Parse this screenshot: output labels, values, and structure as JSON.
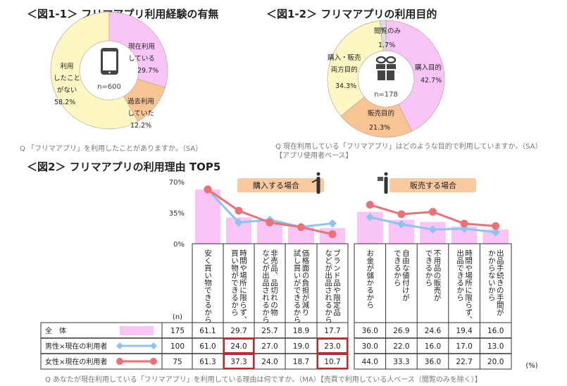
{
  "colors": {
    "pink": "#f9c5f7",
    "orange": "#f8c494",
    "yellow": "#fdf8c3",
    "gray": "#dcdcdc",
    "blue": "#8ec4f2",
    "red": "#ec7074",
    "badge": "#f9ca9e",
    "highlight": "#c0282c"
  },
  "chart_data": [
    {
      "type": "pie",
      "title": "＜図1-1＞ フリマアプリ利用経験の有無",
      "center_label": "n=600",
      "icon": "smartphone-icon",
      "slices": [
        {
          "label": "現在利用\nしている",
          "value": 29.7,
          "color": "pink"
        },
        {
          "label": "過去利用\nしていた",
          "value": 12.2,
          "color": "orange"
        },
        {
          "label": "利用\nしたこと\nがない",
          "value": 58.2,
          "color": "yellow"
        }
      ],
      "caption": "Q 「フリマアプリ」を利用したことがありますか。（SA）"
    },
    {
      "type": "pie",
      "title": "＜図1-2＞ フリマアプリの利用目的",
      "center_label": "n=178",
      "icon": "gift-icon",
      "slices": [
        {
          "label": "購入目的",
          "value": 42.7,
          "color": "pink"
        },
        {
          "label": "販売目的",
          "value": 21.3,
          "color": "orange"
        },
        {
          "label": "購入・販売\n両方目的",
          "value": 34.3,
          "color": "yellow"
        },
        {
          "label": "閲覧のみ",
          "value": 1.7,
          "color": "gray"
        }
      ],
      "caption": "Q 現在利用している「フリマアプリ」はどのような目的で利用していますか。（SA）",
      "caption2": "【アプリ使用者ベース】"
    },
    {
      "type": "bar",
      "title": "＜図2＞ フリマアプリの利用理由 TOP5",
      "ylim": [
        0,
        70
      ],
      "yticks": [
        "70%",
        "35%",
        "0%"
      ],
      "ytick_values": [
        70,
        35,
        0
      ],
      "groups": [
        {
          "label": "購入する場合",
          "icon": "buyer-person-icon"
        },
        {
          "label": "販売する場合",
          "icon": "seller-person-gift-icon"
        }
      ],
      "categories": [
        "安く買い物できるから",
        "時間や場所に限らず、\n買い物ができるから",
        "非売品、品切れの物\nなどが出品されるから",
        "価格面の負担が減り\n試し買いができるから",
        "ブランド品や限定品\nなどが出品されるから",
        "お金が儲かるから",
        "自由な値付けが\nできるから",
        "不用品の販売が\nできるから",
        "時間や場所に限らず、\n出品できるから",
        "出品手続きの手間が\nかからないから"
      ],
      "n_header": "(n)",
      "unit": "(%)",
      "series": [
        {
          "name": "全　体",
          "n": "175",
          "display": "bar",
          "color": "pink",
          "values": [
            61.1,
            29.7,
            25.7,
            18.9,
            17.7,
            36.0,
            26.9,
            24.6,
            19.4,
            16.0
          ]
        },
        {
          "name": "男性×現在の利用者",
          "n": "100",
          "display": "line-diamond",
          "color": "blue",
          "values": [
            61.0,
            24.0,
            27.0,
            19.0,
            23.0,
            30.0,
            22.0,
            16.0,
            17.0,
            13.0
          ]
        },
        {
          "name": "女性×現在の利用者",
          "n": "75",
          "display": "line-circle",
          "color": "red",
          "values": [
            61.3,
            37.3,
            24.0,
            18.7,
            10.7,
            44.0,
            33.3,
            36.0,
            22.7,
            20.0
          ]
        }
      ],
      "highlighted_cells": [
        [
          1,
          1
        ],
        [
          1,
          4
        ],
        [
          2,
          1
        ],
        [
          2,
          4
        ]
      ],
      "caption": "Q あなたが現在利用している「フリマアプリ」を利用している理由は何ですか。（MA）【売買で利用している人ベース（閲覧のみを除く）】"
    }
  ]
}
